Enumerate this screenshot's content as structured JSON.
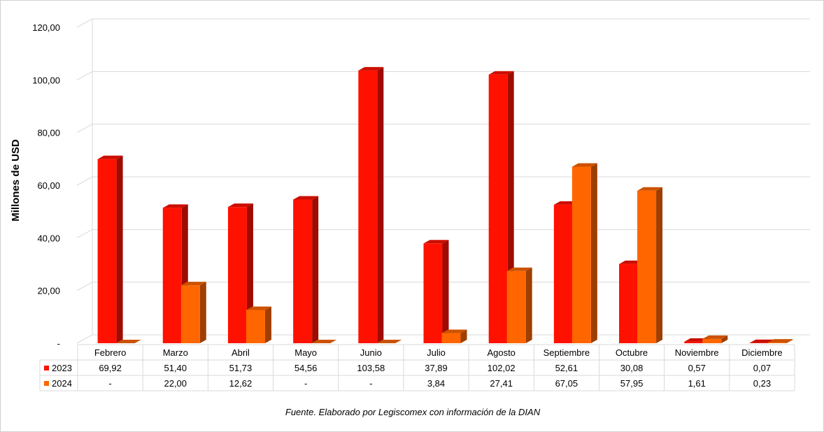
{
  "chart_data": {
    "type": "bar",
    "title": "",
    "xlabel": "",
    "ylabel": "Millones de USD",
    "ylim": [
      0,
      120
    ],
    "yticks": [
      "-",
      "20,00",
      "40,00",
      "60,00",
      "80,00",
      "100,00",
      "120,00"
    ],
    "grid": true,
    "legend": "data-table",
    "categories": [
      "Febrero",
      "Marzo",
      "Abril",
      "Mayo",
      "Junio",
      "Julio",
      "Agosto",
      "Septiembre",
      "Octubre",
      "Noviembre",
      "Diciembre"
    ],
    "series": [
      {
        "name": "2023",
        "color": "#ff1100",
        "values": [
          69.92,
          51.4,
          51.73,
          54.56,
          103.58,
          37.89,
          102.02,
          52.61,
          30.08,
          0.57,
          0.07
        ],
        "labels": [
          "69,92",
          "51,40",
          "51,73",
          "54,56",
          "103,58",
          "37,89",
          "102,02",
          "52,61",
          "30,08",
          "0,57",
          "0,07"
        ]
      },
      {
        "name": "2024",
        "color": "#ff6600",
        "values": [
          0,
          22.0,
          12.62,
          0,
          0,
          3.84,
          27.41,
          67.05,
          57.95,
          1.61,
          0.23
        ],
        "labels": [
          "-",
          "22,00",
          "12,62",
          "-",
          "-",
          "3,84",
          "27,41",
          "67,05",
          "57,95",
          "1,61",
          "0,23"
        ]
      }
    ],
    "source": "Fuente. Elaborado por Legiscomex con información de la DIAN"
  }
}
